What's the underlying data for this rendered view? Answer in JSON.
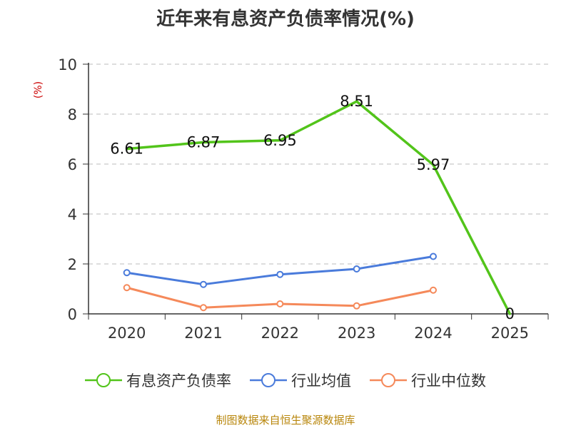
{
  "title": "近年来有息资产负债率情况(%)",
  "unit_label": "(%)",
  "source": "制图数据来自恒生聚源数据库",
  "chart_data": {
    "type": "line",
    "title": "近年来有息资产负债率情况(%)",
    "categories": [
      "2020",
      "2021",
      "2022",
      "2023",
      "2024",
      "2025"
    ],
    "ylim": [
      0,
      10
    ],
    "yticks": [
      0,
      2,
      4,
      6,
      8,
      10
    ],
    "ylabel": "(%)",
    "grid": true,
    "legend_position": "bottom",
    "series": [
      {
        "name": "有息资产负债率",
        "color": "#52c41a",
        "values": [
          6.61,
          6.87,
          6.95,
          8.51,
          5.97,
          0
        ],
        "labels": [
          "6.61",
          "6.87",
          "6.95",
          "8.51",
          "5.97",
          "0"
        ]
      },
      {
        "name": "行业均值",
        "color": "#4a7bdb",
        "values": [
          1.65,
          1.18,
          1.58,
          1.8,
          2.3,
          null
        ]
      },
      {
        "name": "行业中位数",
        "color": "#f5895a",
        "values": [
          1.05,
          0.25,
          0.4,
          0.32,
          0.95,
          null
        ]
      }
    ]
  }
}
